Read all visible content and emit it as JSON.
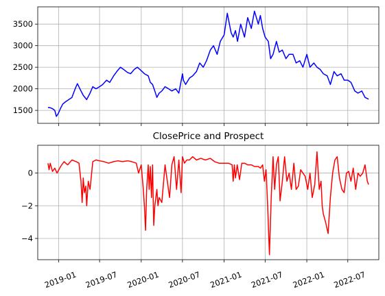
{
  "chart_data": [
    {
      "type": "line",
      "title": "",
      "xlabel": "",
      "ylabel": "",
      "series": [
        {
          "color": "#0000ff",
          "x": [
            "2018-11-15",
            "2018-11-25",
            "2018-12-05",
            "2018-12-15",
            "2018-12-22",
            "2018-12-30",
            "2019-01-10",
            "2019-01-20",
            "2019-02-01",
            "2019-02-15",
            "2019-03-01",
            "2019-03-15",
            "2019-03-25",
            "2019-04-05",
            "2019-04-20",
            "2019-05-05",
            "2019-05-20",
            "2019-06-01",
            "2019-06-15",
            "2019-07-01",
            "2019-07-15",
            "2019-08-01",
            "2019-08-15",
            "2019-09-01",
            "2019-09-15",
            "2019-10-01",
            "2019-10-15",
            "2019-11-01",
            "2019-11-15",
            "2019-12-01",
            "2019-12-15",
            "2020-01-01",
            "2020-01-15",
            "2020-02-01",
            "2020-02-10",
            "2020-02-20",
            "2020-03-01",
            "2020-03-10",
            "2020-03-20",
            "2020-04-01",
            "2020-04-15",
            "2020-05-01",
            "2020-05-15",
            "2020-06-01",
            "2020-06-15",
            "2020-07-01",
            "2020-07-05",
            "2020-07-15",
            "2020-08-01",
            "2020-08-15",
            "2020-09-01",
            "2020-09-15",
            "2020-10-01",
            "2020-10-15",
            "2020-11-01",
            "2020-11-15",
            "2020-12-01",
            "2020-12-15",
            "2021-01-01",
            "2021-01-15",
            "2021-02-01",
            "2021-02-10",
            "2021-02-20",
            "2021-03-01",
            "2021-03-15",
            "2021-04-01",
            "2021-04-15",
            "2021-05-01",
            "2021-05-15",
            "2021-06-01",
            "2021-06-10",
            "2021-06-20",
            "2021-07-01",
            "2021-07-15",
            "2021-07-25",
            "2021-08-05",
            "2021-08-20",
            "2021-09-01",
            "2021-09-15",
            "2021-10-01",
            "2021-10-15",
            "2021-11-01",
            "2021-11-15",
            "2021-12-01",
            "2021-12-15",
            "2022-01-01",
            "2022-01-15",
            "2022-02-01",
            "2022-02-15",
            "2022-03-01",
            "2022-03-15",
            "2022-04-01",
            "2022-04-15",
            "2022-05-01",
            "2022-05-15",
            "2022-06-01",
            "2022-06-15",
            "2022-07-01",
            "2022-07-15",
            "2022-08-01",
            "2022-08-15",
            "2022-09-01",
            "2022-09-15",
            "2022-10-01"
          ],
          "y": [
            1570,
            1560,
            1540,
            1500,
            1360,
            1420,
            1550,
            1650,
            1700,
            1750,
            1800,
            2000,
            2120,
            2000,
            1850,
            1750,
            1900,
            2050,
            2000,
            2050,
            2100,
            2200,
            2150,
            2300,
            2400,
            2500,
            2450,
            2380,
            2350,
            2450,
            2500,
            2420,
            2350,
            2300,
            2150,
            2100,
            1950,
            1800,
            1900,
            1950,
            2050,
            2000,
            1950,
            2000,
            1900,
            2350,
            2200,
            2100,
            2250,
            2300,
            2400,
            2600,
            2500,
            2650,
            2900,
            3000,
            2800,
            3100,
            3250,
            3750,
            3300,
            3200,
            3350,
            3100,
            3500,
            3200,
            3650,
            3400,
            3800,
            3500,
            3700,
            3400,
            3200,
            3100,
            2700,
            2800,
            3100,
            2850,
            2900,
            2700,
            2800,
            2800,
            2600,
            2650,
            2500,
            2800,
            2500,
            2600,
            2500,
            2450,
            2350,
            2300,
            2100,
            2400,
            2300,
            2350,
            2200,
            2200,
            2150,
            1950,
            1900,
            1950,
            1800,
            1760
          ]
        }
      ],
      "xlim": [
        "2018-10-01",
        "2022-11-15"
      ],
      "ylim": [
        1200,
        3900
      ],
      "yticks": [
        1500,
        2000,
        2500,
        3000,
        3500
      ],
      "grid": true
    },
    {
      "type": "line",
      "title": "ClosePrice and Prospect",
      "xlabel": "",
      "ylabel": "",
      "series": [
        {
          "color": "#ff0000",
          "x": [
            "2018-11-15",
            "2018-11-20",
            "2018-11-25",
            "2018-12-05",
            "2018-12-15",
            "2018-12-25",
            "2019-01-10",
            "2019-01-25",
            "2019-02-10",
            "2019-03-01",
            "2019-03-20",
            "2019-04-01",
            "2019-04-10",
            "2019-04-15",
            "2019-04-20",
            "2019-04-25",
            "2019-05-01",
            "2019-05-05",
            "2019-05-12",
            "2019-05-20",
            "2019-06-01",
            "2019-06-15",
            "2019-07-01",
            "2019-07-20",
            "2019-08-10",
            "2019-09-01",
            "2019-09-20",
            "2019-10-10",
            "2019-11-01",
            "2019-11-20",
            "2019-12-10",
            "2019-12-20",
            "2020-01-01",
            "2020-01-10",
            "2020-01-15",
            "2020-01-20",
            "2020-01-25",
            "2020-02-01",
            "2020-02-05",
            "2020-02-10",
            "2020-02-15",
            "2020-02-20",
            "2020-02-25",
            "2020-03-01",
            "2020-03-10",
            "2020-03-15",
            "2020-03-20",
            "2020-04-01",
            "2020-04-15",
            "2020-04-25",
            "2020-05-05",
            "2020-05-15",
            "2020-05-25",
            "2020-06-05",
            "2020-06-15",
            "2020-06-25",
            "2020-07-01",
            "2020-07-10",
            "2020-07-20",
            "2020-08-01",
            "2020-08-15",
            "2020-09-01",
            "2020-09-20",
            "2020-10-10",
            "2020-11-01",
            "2020-11-20",
            "2020-12-10",
            "2021-01-01",
            "2021-01-20",
            "2021-02-05",
            "2021-02-10",
            "2021-02-15",
            "2021-02-20",
            "2021-02-28",
            "2021-03-10",
            "2021-03-20",
            "2021-04-01",
            "2021-04-15",
            "2021-05-01",
            "2021-05-15",
            "2021-06-01",
            "2021-06-10",
            "2021-06-20",
            "2021-06-28",
            "2021-07-05",
            "2021-07-12",
            "2021-07-20",
            "2021-07-28",
            "2021-08-05",
            "2021-08-12",
            "2021-08-20",
            "2021-08-28",
            "2021-09-05",
            "2021-09-15",
            "2021-09-25",
            "2021-10-05",
            "2021-10-15",
            "2021-10-25",
            "2021-11-05",
            "2021-11-15",
            "2021-11-25",
            "2021-12-05",
            "2021-12-15",
            "2021-12-25",
            "2022-01-05",
            "2022-01-15",
            "2022-01-25",
            "2022-02-05",
            "2022-02-15",
            "2022-02-25",
            "2022-03-05",
            "2022-03-10",
            "2022-03-15",
            "2022-03-25",
            "2022-04-05",
            "2022-04-15",
            "2022-04-25",
            "2022-05-05",
            "2022-05-15",
            "2022-05-25",
            "2022-06-05",
            "2022-06-15",
            "2022-06-25",
            "2022-07-05",
            "2022-07-15",
            "2022-07-25",
            "2022-08-05",
            "2022-08-15",
            "2022-08-25",
            "2022-09-05",
            "2022-09-15",
            "2022-09-25",
            "2022-10-01"
          ],
          "y": [
            0.6,
            0.2,
            0.6,
            0.1,
            0.3,
            0.0,
            0.4,
            0.7,
            0.5,
            0.8,
            0.7,
            0.6,
            -0.5,
            -1.8,
            -0.3,
            -1.2,
            -0.8,
            -2.0,
            -0.5,
            -1.0,
            0.7,
            0.8,
            0.75,
            0.7,
            0.6,
            0.7,
            0.75,
            0.7,
            0.75,
            0.7,
            0.6,
            0.0,
            0.5,
            -1.0,
            -2.0,
            -3.5,
            -1.0,
            0.5,
            -1.0,
            0.4,
            -1.5,
            0.5,
            -3.2,
            -2.0,
            -1.0,
            -2.0,
            -1.5,
            -1.8,
            0.5,
            -0.5,
            -1.5,
            0.5,
            1.0,
            -1.0,
            0.8,
            -1.2,
            1.0,
            0.6,
            0.8,
            0.8,
            1.0,
            0.8,
            0.9,
            0.8,
            0.9,
            0.7,
            0.6,
            0.6,
            0.6,
            0.5,
            -0.5,
            0.5,
            -0.3,
            0.5,
            -0.4,
            0.6,
            0.6,
            0.5,
            0.5,
            0.4,
            0.4,
            0.3,
            0.5,
            -0.5,
            0.2,
            -2.0,
            -5.0,
            -1.5,
            1.0,
            -1.0,
            0.5,
            1.0,
            -1.7,
            -0.5,
            1.0,
            -0.5,
            0.0,
            -1.0,
            0.6,
            -1.0,
            -0.8,
            0.2,
            0.0,
            -0.2,
            -1.0,
            0.0,
            -1.5,
            -0.7,
            1.3,
            -1.0,
            -0.5,
            -2.0,
            -2.5,
            -3.0,
            -3.7,
            -1.5,
            0.0,
            0.8,
            1.0,
            -0.3,
            -1.0,
            -1.2,
            0.0,
            0.1,
            -0.5,
            0.3,
            -1.0,
            0.0,
            -0.2,
            0.0,
            0.5,
            -0.5,
            -0.7
          ]
        }
      ],
      "xlim": [
        "2018-10-01",
        "2022-11-15"
      ],
      "ylim": [
        -5.3,
        1.7
      ],
      "yticks": [
        -4,
        -2,
        0
      ],
      "grid": true
    }
  ],
  "xticks": [
    "2019-01",
    "2019-07",
    "2020-01",
    "2020-07",
    "2021-01",
    "2021-07",
    "2022-01",
    "2022-07"
  ]
}
